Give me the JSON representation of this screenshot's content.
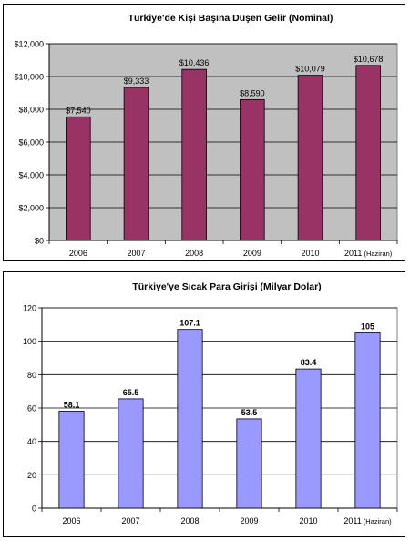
{
  "colors": {
    "plot_bg_1": "#c0c0c0",
    "plot_bg_2": "#ffffff",
    "bar_1": "#993366",
    "bar_2": "#9999ff",
    "grid": "#000000"
  },
  "chart_data": [
    {
      "type": "bar",
      "title": "Türkiye'de Kişi Başına Düşen Gelir (Nominal)",
      "categories": [
        "2006",
        "2007",
        "2008",
        "2009",
        "2010",
        "2011"
      ],
      "category_suffix": [
        "",
        "",
        "",
        "",
        "",
        "(Haziran)"
      ],
      "values": [
        7540,
        9333,
        10436,
        8590,
        10079,
        10678
      ],
      "value_labels": [
        "$7,540",
        "$9,333",
        "$10,436",
        "$8,590",
        "$10,079",
        "$10,678"
      ],
      "yticks": [
        0,
        2000,
        4000,
        6000,
        8000,
        10000,
        12000
      ],
      "ytick_labels": [
        "$0",
        "$2,000",
        "$4,000",
        "$6,000",
        "$8,000",
        "$10,000",
        "$12,000"
      ],
      "ylim": [
        0,
        12000
      ],
      "xlabel": "",
      "ylabel": "",
      "grid": true,
      "legend": false
    },
    {
      "type": "bar",
      "title": "Türkiye'ye Sıcak Para Girişi (Milyar Dolar)",
      "categories": [
        "2006",
        "2007",
        "2008",
        "2009",
        "2010",
        "2011"
      ],
      "category_suffix": [
        "",
        "",
        "",
        "",
        "",
        "(Haziran)"
      ],
      "values": [
        58.1,
        65.5,
        107.1,
        53.5,
        83.4,
        105
      ],
      "value_labels": [
        "58.1",
        "65.5",
        "107.1",
        "53.5",
        "83.4",
        "105"
      ],
      "yticks": [
        0,
        20,
        40,
        60,
        80,
        100,
        120
      ],
      "ytick_labels": [
        "0",
        "20",
        "40",
        "60",
        "80",
        "100",
        "120"
      ],
      "ylim": [
        0,
        120
      ],
      "xlabel": "",
      "ylabel": "",
      "grid": true,
      "legend": false
    }
  ]
}
